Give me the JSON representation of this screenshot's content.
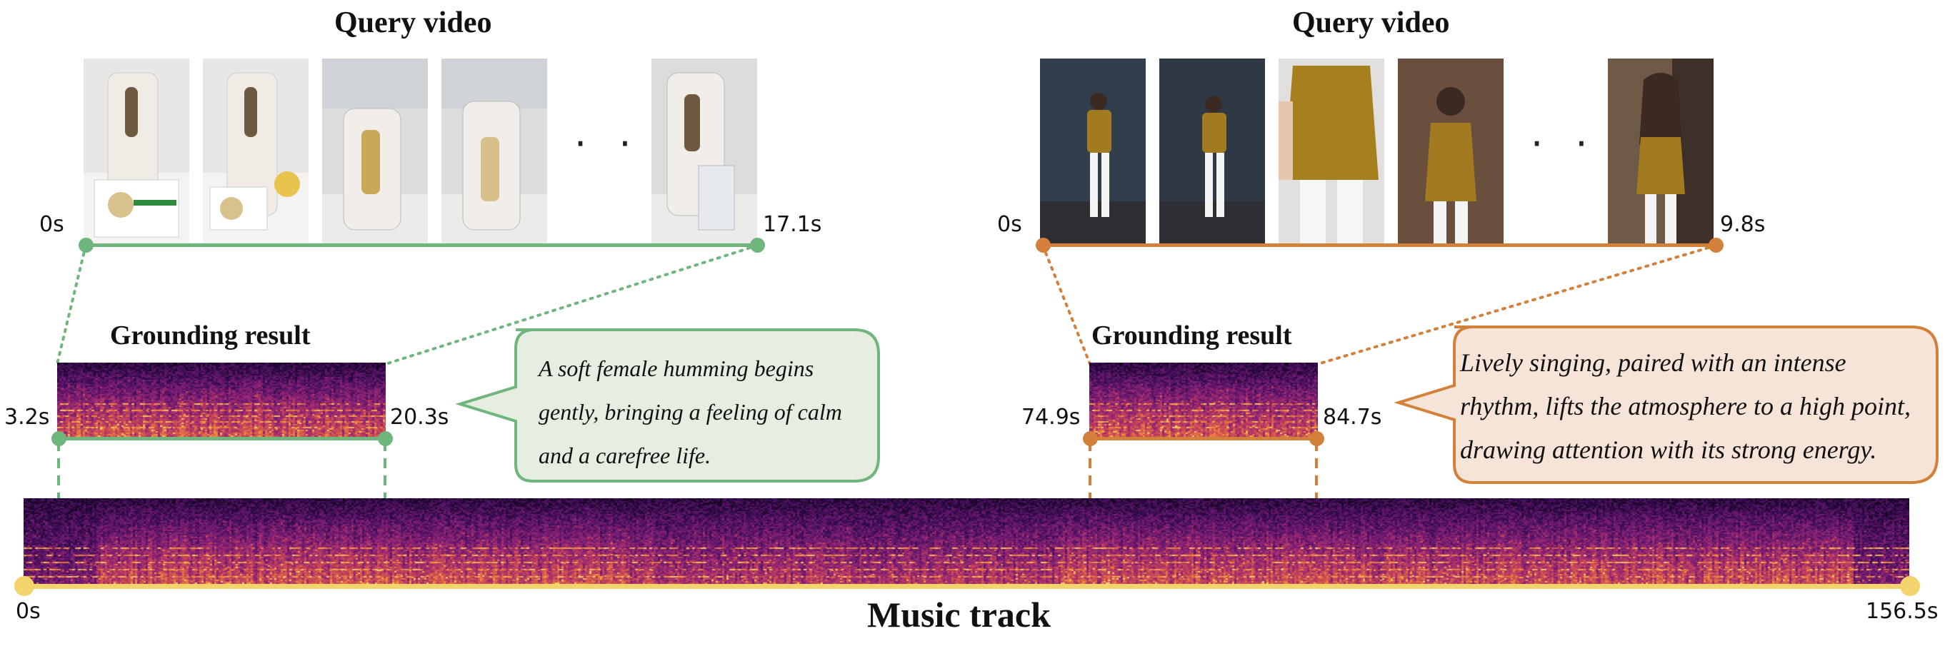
{
  "colors": {
    "green": "#6fb57e",
    "green_fill": "#e5eee0",
    "orange": "#d3803a",
    "orange_fill": "#f6e4d8",
    "yellow": "#f3d36b"
  },
  "left": {
    "query_title": "Query video",
    "start_label": "0s",
    "end_label": "17.1s",
    "ellipsis": "· · ·",
    "grounding_title": "Grounding result",
    "seg_start": "3.2s",
    "seg_end": "20.3s",
    "caption_lines": [
      "A soft female humming begins",
      "gently, bringing a feeling of calm",
      "and a carefree life."
    ]
  },
  "right": {
    "query_title": "Query video",
    "start_label": "0s",
    "end_label": "9.8s",
    "ellipsis": "· · ·",
    "grounding_title": "Grounding result",
    "seg_start": "74.9s",
    "seg_end": "84.7s",
    "caption_lines": [
      "Lively singing, paired with an intense",
      "rhythm, lifts the atmosphere to a high point,",
      "drawing attention with its strong energy."
    ]
  },
  "track": {
    "title": "Music track",
    "start_label": "0s",
    "end_label": "156.5s"
  }
}
